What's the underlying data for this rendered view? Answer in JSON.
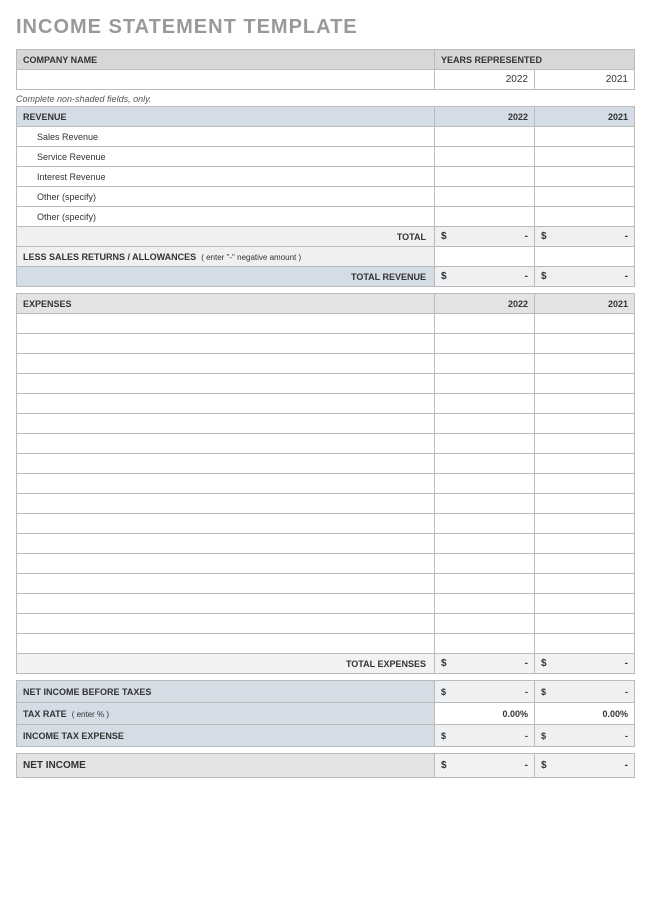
{
  "title": "INCOME STATEMENT TEMPLATE",
  "header": {
    "company_name_label": "COMPANY NAME",
    "years_label": "YEARS REPRESENTED",
    "year1": "2022",
    "year2": "2021"
  },
  "note": "Complete non-shaded fields, only.",
  "revenue": {
    "header": "REVENUE",
    "items": [
      "Sales Revenue",
      "Service Revenue",
      "Interest Revenue",
      "Other (specify)",
      "Other (specify)"
    ],
    "total_label": "TOTAL",
    "less_label": "LESS SALES RETURNS / ALLOWANCES",
    "less_hint": "( enter \"-\" negative amount )",
    "total_revenue_label": "TOTAL REVENUE"
  },
  "expenses": {
    "header": "EXPENSES",
    "blank_rows": 17,
    "total_label": "TOTAL EXPENSES"
  },
  "summary": {
    "net_before_taxes": "NET INCOME BEFORE TAXES",
    "tax_rate_label": "TAX RATE",
    "tax_rate_hint": "( enter % )",
    "tax_rate_y1": "0.00%",
    "tax_rate_y2": "0.00%",
    "income_tax_expense": "INCOME TAX EXPENSE",
    "net_income": "NET INCOME"
  },
  "money": {
    "symbol": "$",
    "dash": "-"
  },
  "colors": {
    "title": "#999999",
    "header_bg": "#d7d7d7",
    "section_bg": "#d4dce6",
    "expense_hdr_bg": "#e3e3e3",
    "total_bg": "#eef0f2",
    "border": "#bbbbbb"
  }
}
